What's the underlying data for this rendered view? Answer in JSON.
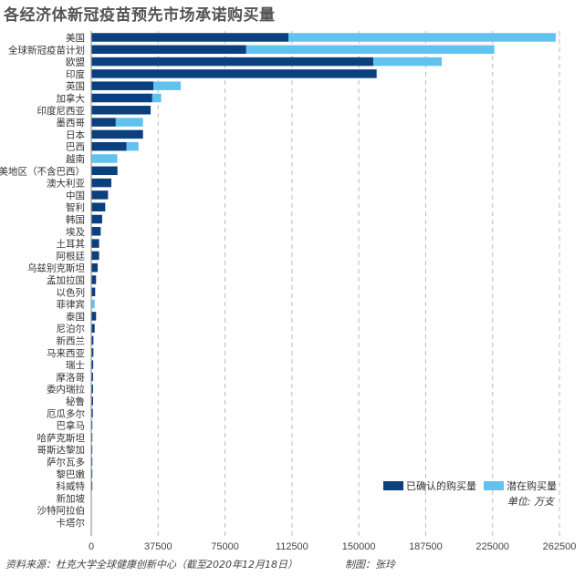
{
  "chart_data": {
    "type": "bar",
    "orientation": "horizontal",
    "stacked": true,
    "title": "各经济体新冠疫苗预先市场承诺购买量",
    "unit": "单位: 万支",
    "xlim": [
      0,
      262500
    ],
    "xticks": [
      0,
      37500,
      75000,
      112500,
      150000,
      187500,
      225000,
      262500
    ],
    "grid": "vertical dashed",
    "legend_position": "bottom-right",
    "categories": [
      "美国",
      "全球新冠疫苗计划",
      "欧盟",
      "印度",
      "英国",
      "加拿大",
      "印度尼西亚",
      "墨西哥",
      "日本",
      "巴西",
      "越南",
      "拉美地区（不含巴西）",
      "澳大利亚",
      "中国",
      "智利",
      "韩国",
      "埃及",
      "土耳其",
      "阿根廷",
      "乌兹别克斯坦",
      "孟加拉国",
      "以色列",
      "菲律宾",
      "泰国",
      "尼泊尔",
      "新西兰",
      "马来西亚",
      "瑞士",
      "摩洛哥",
      "委内瑞拉",
      "秘鲁",
      "厄瓜多尔",
      "巴拿马",
      "哈萨克斯坦",
      "哥斯达黎加",
      "萨尔瓦多",
      "黎巴嫩",
      "科威特",
      "新加坡",
      "沙特阿拉伯",
      "卡塔尔"
    ],
    "series": [
      {
        "name": "已确认的购买量",
        "color": "#0b3f7e",
        "values": [
          110600,
          86900,
          158100,
          160000,
          34800,
          34200,
          33300,
          13750,
          29000,
          19800,
          0,
          14700,
          11250,
          9400,
          7850,
          6100,
          5300,
          4400,
          4400,
          3600,
          2700,
          2200,
          0,
          2700,
          1900,
          1200,
          1200,
          1100,
          1000,
          1000,
          1000,
          900,
          500,
          500,
          400,
          200,
          200,
          100,
          0,
          0,
          0
        ]
      },
      {
        "name": "潜在购买量",
        "color": "#62c2ee",
        "values": [
          149800,
          139100,
          38400,
          0,
          15400,
          5000,
          0,
          15250,
          0,
          6700,
          14600,
          0,
          0,
          0,
          0,
          0,
          0,
          0,
          0,
          0,
          0,
          0,
          1900,
          0,
          0,
          0,
          0,
          0,
          0,
          0,
          0,
          0,
          0,
          0,
          0,
          0,
          0,
          0,
          0,
          0,
          0
        ]
      }
    ]
  },
  "footer": {
    "source": "资料来源：杜克大学全球健康创新中心（截至2020年12月18日）",
    "credit": "制图：张玲"
  }
}
